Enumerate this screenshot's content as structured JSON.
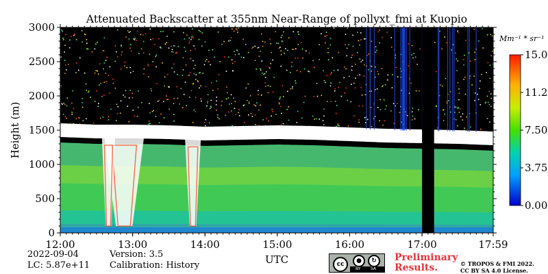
{
  "chart_data": {
    "type": "heatmap",
    "title": "Attenuated Backscatter at 355nm Near-Range of pollyxt_fmi at Kuopio",
    "ylabel": "Height (m)",
    "xlabel": "UTC",
    "x_ticks": [
      "12:00",
      "13:00",
      "14:00",
      "15:00",
      "16:00",
      "17:00",
      "17:59"
    ],
    "x_range": [
      "12:00",
      "17:59"
    ],
    "y_ticks": [
      0,
      500,
      1000,
      1500,
      2000,
      2500,
      3000
    ],
    "ylim": [
      0,
      3000
    ],
    "colorbar": {
      "unit_label": "Mm⁻¹ * sr⁻¹",
      "ticks": [
        "0.00",
        "3.75",
        "7.50",
        "11.25",
        "15.00"
      ],
      "range": [
        0,
        15
      ]
    },
    "cloud_top_profile_m": [
      {
        "time": "12:00",
        "height": 1500
      },
      {
        "time": "12:30",
        "height": 1480
      },
      {
        "time": "13:00",
        "height": 1480
      },
      {
        "time": "13:30",
        "height": 1470
      },
      {
        "time": "14:00",
        "height": 1450
      },
      {
        "time": "14:30",
        "height": 1460
      },
      {
        "time": "15:00",
        "height": 1470
      },
      {
        "time": "15:30",
        "height": 1460
      },
      {
        "time": "16:00",
        "height": 1440
      },
      {
        "time": "16:30",
        "height": 1420
      },
      {
        "time": "17:00",
        "height": 1410
      },
      {
        "time": "17:30",
        "height": 1400
      },
      {
        "time": "17:59",
        "height": 1380
      }
    ],
    "no_data_interval": [
      "17:00",
      "17:10"
    ]
  },
  "footer": {
    "date": "2022-09-04",
    "lc": "LC: 5.87e+11",
    "version": "Version: 3.5",
    "calibration": "Calibration: History",
    "preliminary_line1": "Preliminary",
    "preliminary_line2": "Results.",
    "copyright_line1": "© TROPOS & FMI 2022.",
    "copyright_line2": "CC BY SA 4.0 License."
  },
  "license_badge": {
    "cc": "cc",
    "by": "BY",
    "sa": "SA"
  }
}
